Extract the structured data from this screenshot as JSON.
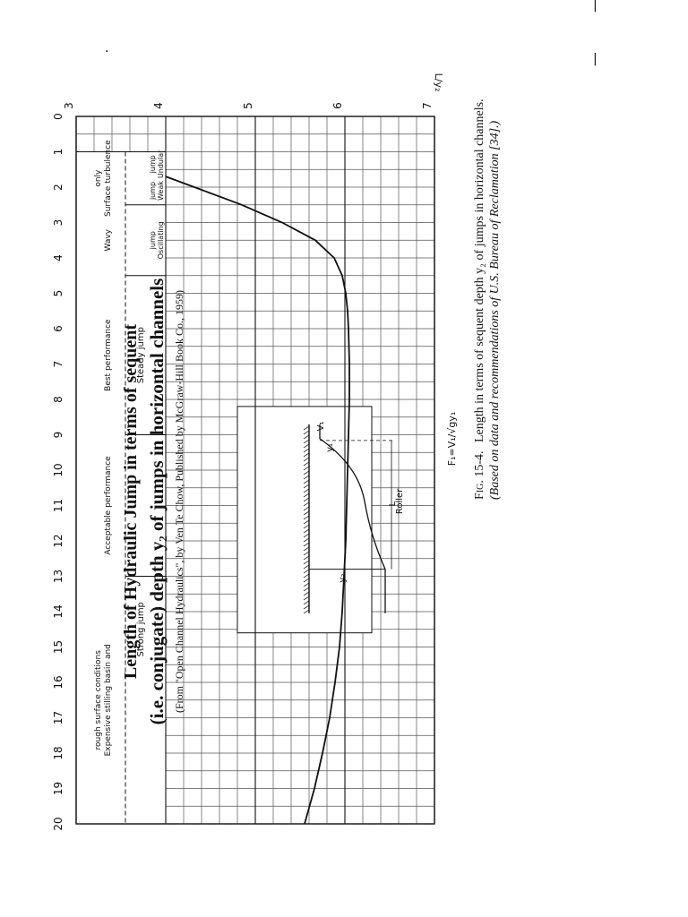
{
  "scan_marks": [
    "|",
    "|",
    "."
  ],
  "figure": {
    "caption_label": "Fig. 15-4.",
    "caption_text": "Length in terms of sequent depth y₂ of jumps in horizontal channels.",
    "caption_source": "(Based on data and recommendations of U.S. Bureau of Reclamation [34].)"
  },
  "slide": {
    "title_line1": "Length of Hydraulic Jump in terms of sequent",
    "title_line2": "(i.e. conjugate) depth y₂ of jumps in horizontal channels",
    "credit": "(From \"Open Channel Hydraulics\", by Ven Te Chow, Published by McGraw-Hill Book Co., 1959)"
  },
  "chart_data": {
    "type": "line",
    "title": "",
    "xlabel": "F₁=V₁/√gy₁",
    "ylabel": "L/y₂",
    "xlim": [
      0,
      20
    ],
    "ylim": [
      3,
      7
    ],
    "x_ticks": [
      0,
      1,
      2,
      3,
      4,
      5,
      6,
      7,
      8,
      9,
      10,
      11,
      12,
      13,
      14,
      15,
      16,
      17,
      18,
      19,
      20
    ],
    "y_ticks": [
      3,
      4,
      5,
      6,
      7
    ],
    "grid": true,
    "series": [
      {
        "x": [
          1.7,
          2.0,
          2.5,
          3.0,
          3.5,
          4.0,
          4.5,
          5.0,
          5.5,
          6.0,
          7.0,
          8.0,
          9.0,
          10.0,
          11.0,
          12.0,
          13.0,
          14.0,
          15.0,
          16.0,
          17.0,
          18.0,
          19.0,
          20.0
        ],
        "y": [
          4.0,
          4.32,
          4.85,
          5.3,
          5.67,
          5.88,
          5.97,
          6.01,
          6.03,
          6.04,
          6.05,
          6.05,
          6.04,
          6.03,
          6.02,
          6.01,
          5.99,
          5.97,
          5.94,
          5.89,
          5.83,
          5.75,
          5.66,
          5.55
        ]
      }
    ],
    "jump_zones": [
      {
        "label": "Undular jump",
        "from": 1,
        "to": 1.7
      },
      {
        "label": "Weak jump",
        "from": 1.7,
        "to": 2.5
      },
      {
        "label": "Oscillating jump",
        "from": 2.5,
        "to": 4.5
      },
      {
        "label": "Steady jump",
        "from": 4.5,
        "to": 9
      },
      {
        "label": "Strong jump",
        "from": 9,
        "to": 20
      }
    ],
    "performance_zones": [
      {
        "label": "Surface turbulence only",
        "from": 1,
        "to": 2.5
      },
      {
        "label": "Wavy",
        "from": 2.5,
        "to": 4.5
      },
      {
        "label": "Best performance",
        "from": 4.5,
        "to": 9
      },
      {
        "label": "Acceptable performance",
        "from": 9,
        "to": 13
      },
      {
        "label": "Expensive stilling basin and rough surface conditions",
        "from": 13,
        "to": 20
      }
    ],
    "inset": {
      "labels": [
        "Roller",
        "V₁",
        "y₁",
        "L",
        "y₂"
      ]
    }
  }
}
